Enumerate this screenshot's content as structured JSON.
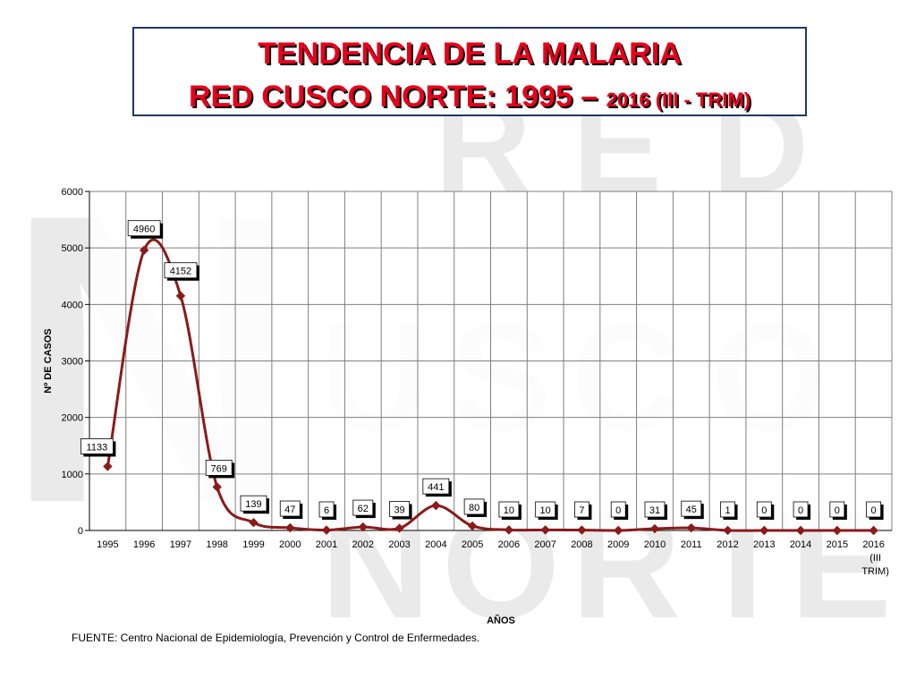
{
  "title": {
    "line1": "TENDENCIA DE LA MALARIA",
    "line2_main": "RED CUSCO NORTE: 1995 – ",
    "line2_tail": "2016 (III - TRIM)"
  },
  "source": "FUENTE: Centro Nacional de Epidemiología, Prevención y Control de Enfermedades.",
  "watermark": {
    "letters": [
      "R",
      "E",
      "D",
      "N",
      "U",
      "S",
      "C",
      "O",
      "N",
      "O",
      "R",
      "T",
      "E"
    ]
  },
  "chart_data": {
    "type": "line",
    "title": "",
    "xlabel": "AÑOS",
    "ylabel": "Nº DE CASOS",
    "ylim": [
      0,
      6000
    ],
    "yticks": [
      0,
      1000,
      2000,
      3000,
      4000,
      5000,
      6000
    ],
    "grid": true,
    "series_color": "#8b1a1a",
    "categories": [
      "1995",
      "1996",
      "1997",
      "1998",
      "1999",
      "2000",
      "2001",
      "2002",
      "2003",
      "2004",
      "2005",
      "2006",
      "2007",
      "2008",
      "2009",
      "2010",
      "2011",
      "2012",
      "2013",
      "2014",
      "2015",
      "2016 (III TRIM)"
    ],
    "category_lines": [
      [
        "1995"
      ],
      [
        "1996"
      ],
      [
        "1997"
      ],
      [
        "1998"
      ],
      [
        "1999"
      ],
      [
        "2000"
      ],
      [
        "2001"
      ],
      [
        "2002"
      ],
      [
        "2003"
      ],
      [
        "2004"
      ],
      [
        "2005"
      ],
      [
        "2006"
      ],
      [
        "2007"
      ],
      [
        "2008"
      ],
      [
        "2009"
      ],
      [
        "2010"
      ],
      [
        "2011"
      ],
      [
        "2012"
      ],
      [
        "2013"
      ],
      [
        "2014"
      ],
      [
        "2015"
      ],
      [
        "2016",
        "(III",
        "TRIM)"
      ]
    ],
    "series": [
      {
        "values": [
          1133,
          4960,
          4152,
          769,
          139,
          47,
          6,
          62,
          39,
          441,
          80,
          10,
          10,
          7,
          0,
          31,
          45,
          1,
          0,
          0,
          0,
          0
        ]
      }
    ]
  }
}
